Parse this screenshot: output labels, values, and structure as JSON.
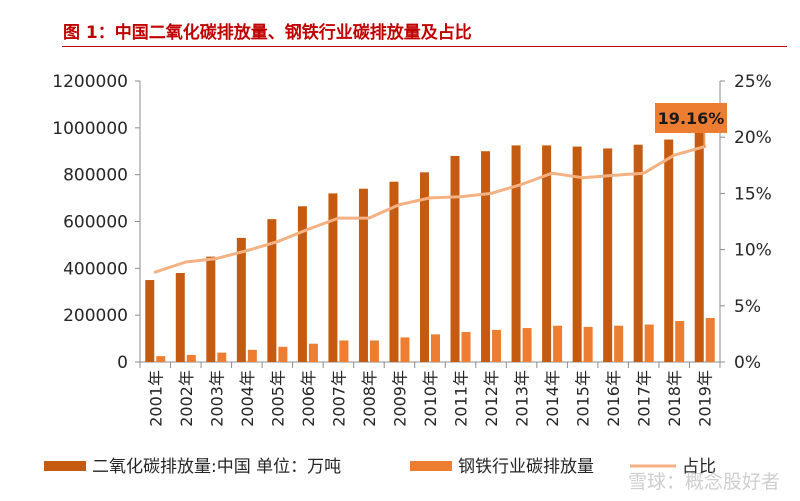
{
  "chart_data": {
    "type": "bar",
    "title": "图 1：中国二氧化碳排放量、钢铁行业碳排放量及占比",
    "categories": [
      "2001年",
      "2002年",
      "2003年",
      "2004年",
      "2005年",
      "2006年",
      "2007年",
      "2008年",
      "2009年",
      "2010年",
      "2011年",
      "2012年",
      "2013年",
      "2014年",
      "2015年",
      "2016年",
      "2017年",
      "2018年",
      "2019年"
    ],
    "series": [
      {
        "name": "二氧化碳排放量:中国 单位：万吨",
        "kind": "bar",
        "axis": "left",
        "color": "#c55a11",
        "values": [
          350000,
          380000,
          450000,
          530000,
          610000,
          665000,
          720000,
          740000,
          770000,
          810000,
          880000,
          900000,
          925000,
          925000,
          920000,
          912000,
          928000,
          950000,
          980000
        ]
      },
      {
        "name": "钢铁行业碳排放量",
        "kind": "bar",
        "axis": "left",
        "color": "#ed7d31",
        "values": [
          25000,
          30000,
          40000,
          52000,
          65000,
          78000,
          92000,
          92000,
          105000,
          118000,
          128000,
          137000,
          145000,
          155000,
          150000,
          155000,
          160000,
          175000,
          188000
        ]
      },
      {
        "name": "占比",
        "kind": "line",
        "axis": "right",
        "color": "#f4b183",
        "values": [
          0.08,
          0.089,
          0.092,
          0.099,
          0.107,
          0.118,
          0.128,
          0.128,
          0.14,
          0.146,
          0.147,
          0.15,
          0.158,
          0.168,
          0.164,
          0.166,
          0.168,
          0.184,
          0.1916
        ]
      }
    ],
    "y_left": {
      "ticks": [
        "0",
        "200000",
        "400000",
        "600000",
        "800000",
        "1000000",
        "1200000"
      ],
      "ylim": [
        0,
        1200000
      ]
    },
    "y_right": {
      "ticks": [
        "0%",
        "5%",
        "10%",
        "15%",
        "20%",
        "25%"
      ],
      "ylim": [
        0,
        0.25
      ]
    },
    "callout": "19.16%",
    "legend_position": "bottom",
    "watermark": "雪球：概念股好者"
  }
}
